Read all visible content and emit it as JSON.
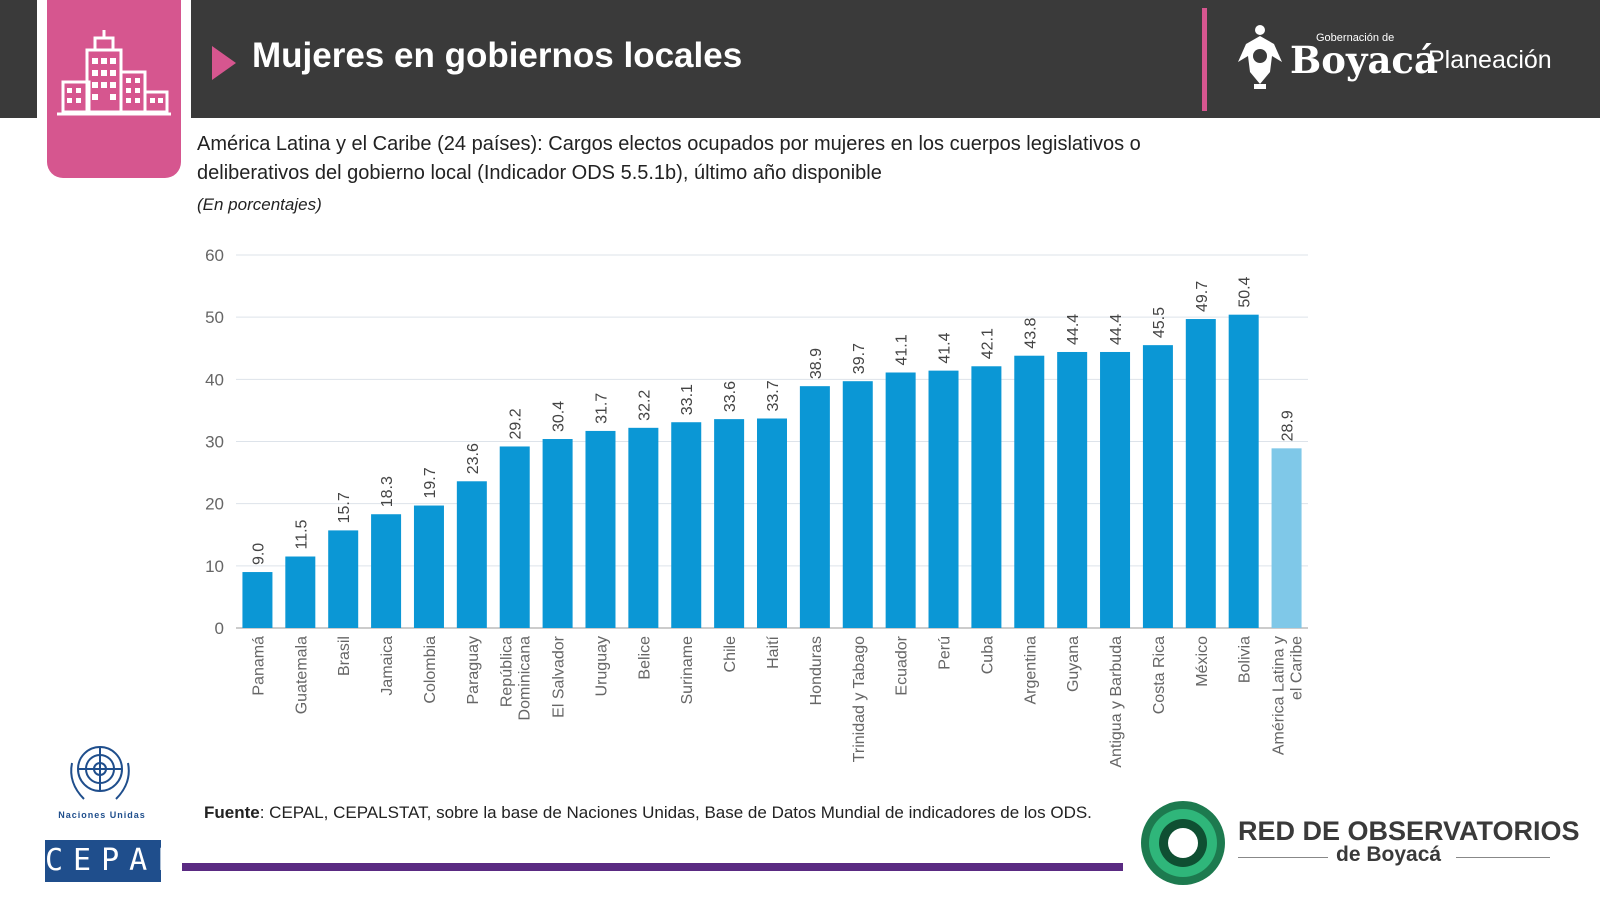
{
  "header": {
    "title": "Mujeres en gobiernos locales",
    "gov_small": "Gobernación de",
    "gov_name": "Boyacá",
    "gov_dept": "Planeación"
  },
  "chart_data": {
    "type": "bar",
    "title": "América Latina y el Caribe (24 países): Cargos electos ocupados por mujeres en los cuerpos legislativos o deliberativos del gobierno local (Indicador ODS 5.5.1b), último año disponible",
    "subtitle": "(En porcentajes)",
    "xlabel": "",
    "ylabel": "",
    "ylim": [
      0,
      60
    ],
    "yticks": [
      "0",
      "10",
      "20",
      "30",
      "40",
      "50",
      "60"
    ],
    "grid": true,
    "categories": [
      [
        "Panamá"
      ],
      [
        "Guatemala"
      ],
      [
        "Brasil"
      ],
      [
        "Jamaica"
      ],
      [
        "Colombia"
      ],
      [
        "Paraguay"
      ],
      [
        "República",
        "Dominicana"
      ],
      [
        "El Salvador"
      ],
      [
        "Uruguay"
      ],
      [
        "Belice"
      ],
      [
        "Suriname"
      ],
      [
        "Chile"
      ],
      [
        "Haití"
      ],
      [
        "Honduras"
      ],
      [
        "Trinidad y Tabago"
      ],
      [
        "Ecuador"
      ],
      [
        "Perú"
      ],
      [
        "Cuba"
      ],
      [
        "Argentina"
      ],
      [
        "Guyana"
      ],
      [
        "Antigua y Barbuda"
      ],
      [
        "Costa Rica"
      ],
      [
        "México"
      ],
      [
        "Bolivia"
      ],
      [
        "América Latina y",
        "el Caribe"
      ]
    ],
    "values": [
      9.0,
      11.5,
      15.7,
      18.3,
      19.7,
      23.6,
      29.2,
      30.4,
      31.7,
      32.2,
      33.1,
      33.6,
      33.7,
      38.9,
      39.7,
      41.1,
      41.4,
      42.1,
      43.8,
      44.4,
      44.4,
      45.5,
      49.7,
      50.4,
      28.9
    ],
    "labels": [
      "9.0",
      "11.5",
      "15.7",
      "18.3",
      "19.7",
      "23.6",
      "29.2",
      "30.4",
      "31.7",
      "32.2",
      "33.1",
      "33.6",
      "33.7",
      "38.9",
      "39.7",
      "41.1",
      "41.4",
      "42.1",
      "43.8",
      "44.4",
      "44.4",
      "45.5",
      "49.7",
      "50.4",
      "28.9"
    ],
    "colors": {
      "country": "#0b97d5",
      "aggregate": "#7fc8e8"
    }
  },
  "footer": {
    "source_label": "Fuente",
    "source_text": ": CEPAL, CEPALSTAT, sobre la base de Naciones Unidas, Base de Datos Mundial de indicadores de los ODS.",
    "un_label": "Naciones Unidas",
    "cepal": "CEPAL",
    "red_name": "RED DE OBSERVATORIOS",
    "red_sub": "de Boyacá"
  }
}
